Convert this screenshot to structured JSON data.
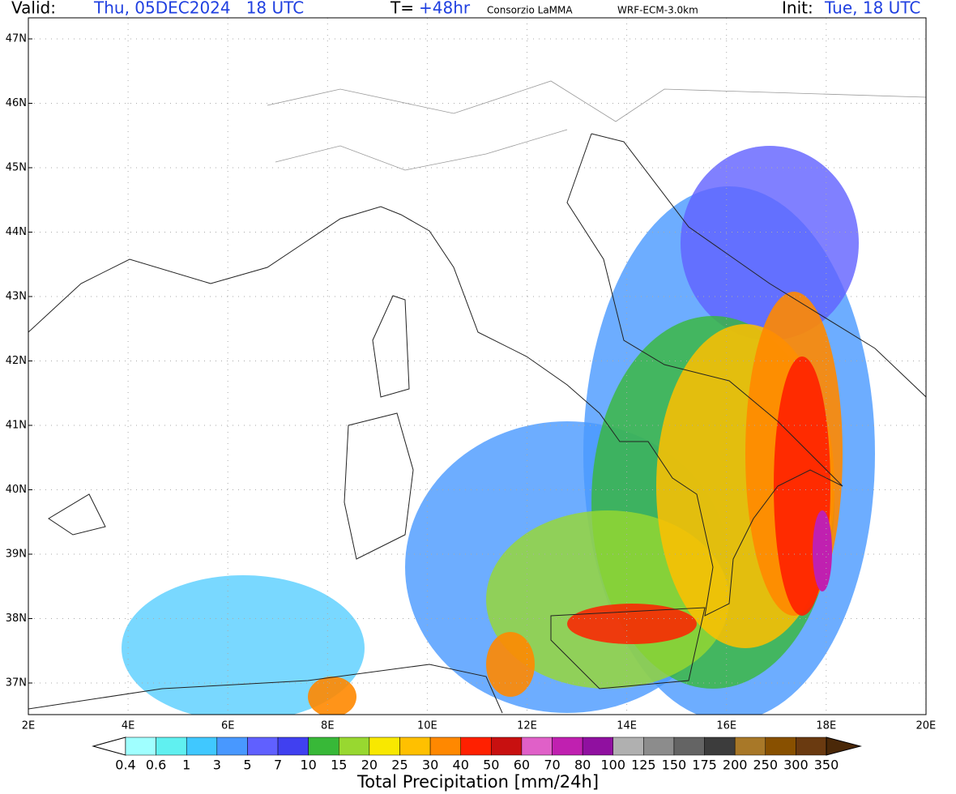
{
  "header": {
    "valid_label": "Valid:",
    "valid_time": "Thu, 05DEC2024   18 UTC",
    "lead_label": "T=",
    "lead_time": "+48hr",
    "source": "Consorzio LaMMA",
    "model": "WRF-ECM-3.0km",
    "init_label": "Init:",
    "init_time": "Tue, 18 UTC"
  },
  "map": {
    "lat_labels": [
      "47N",
      "46N",
      "45N",
      "44N",
      "43N",
      "42N",
      "41N",
      "40N",
      "39N",
      "38N",
      "37N"
    ],
    "lon_labels": [
      "2E",
      "4E",
      "6E",
      "8E",
      "10E",
      "12E",
      "14E",
      "16E",
      "18E",
      "20E"
    ]
  },
  "colorbar": {
    "title": "Total Precipitation [mm/24h]",
    "labels": [
      "0.4",
      "0.6",
      "1",
      "3",
      "5",
      "7",
      "10",
      "15",
      "20",
      "25",
      "30",
      "40",
      "50",
      "60",
      "70",
      "80",
      "100",
      "125",
      "150",
      "175",
      "200",
      "250",
      "300",
      "350"
    ],
    "colors": [
      "#a0ffff",
      "#60f0f0",
      "#40c8ff",
      "#4898ff",
      "#6060ff",
      "#4040f0",
      "#38b838",
      "#98d830",
      "#f8e800",
      "#ffc000",
      "#ff8800",
      "#ff2000",
      "#c81010",
      "#e060c8",
      "#c020b0",
      "#9010a0",
      "#b0b0b0",
      "#8c8c8c",
      "#646464",
      "#3c3c3c",
      "#a87828",
      "#885000",
      "#6a3a10"
    ],
    "over_color": "#4a2808"
  }
}
